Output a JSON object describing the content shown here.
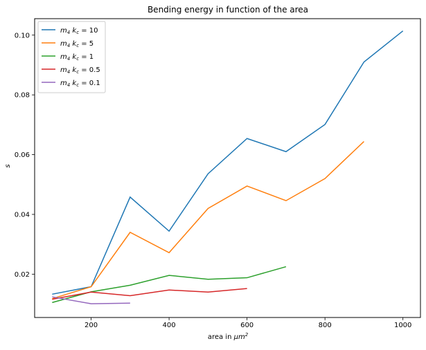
{
  "chart_data": {
    "type": "line",
    "title": "Bending energy in function of the area",
    "xlabel": "area in μm²",
    "ylabel": "s",
    "xlim": [
      55,
      1045
    ],
    "ylim": [
      0.0055,
      0.1055
    ],
    "xticks": [
      200,
      400,
      600,
      800,
      1000
    ],
    "yticks": [
      0.02,
      0.04,
      0.06,
      0.08,
      0.1
    ],
    "ytick_labels": [
      "0.02",
      "0.04",
      "0.06",
      "0.08",
      "0.10"
    ],
    "grid": false,
    "legend_position": "top-left",
    "series": [
      {
        "name": "m₄ k_c = 10",
        "color": "#1f77b4",
        "x": [
          100,
          200,
          300,
          400,
          500,
          600,
          700,
          800,
          900,
          1000
        ],
        "y": [
          0.0133,
          0.0158,
          0.0458,
          0.0344,
          0.0536,
          0.0654,
          0.061,
          0.0701,
          0.091,
          0.1014
        ]
      },
      {
        "name": "m₄ k_c = 5",
        "color": "#ff7f0e",
        "x": [
          100,
          200,
          300,
          400,
          500,
          600,
          700,
          800,
          900
        ],
        "y": [
          0.0118,
          0.0158,
          0.034,
          0.0272,
          0.042,
          0.0495,
          0.0446,
          0.052,
          0.0644
        ]
      },
      {
        "name": "m₄ k_c = 1",
        "color": "#2ca02c",
        "x": [
          100,
          200,
          300,
          400,
          500,
          600,
          700
        ],
        "y": [
          0.0105,
          0.0141,
          0.0163,
          0.0196,
          0.0183,
          0.0188,
          0.0225
        ]
      },
      {
        "name": "m₄  k_c = 0.5",
        "color": "#d62728",
        "x": [
          100,
          200,
          300,
          400,
          500,
          600
        ],
        "y": [
          0.0116,
          0.014,
          0.0128,
          0.0147,
          0.014,
          0.0152
        ]
      },
      {
        "name": "m₄ k_c = 0.1",
        "color": "#9467bd",
        "x": [
          100,
          200,
          300
        ],
        "y": [
          0.0124,
          0.0101,
          0.0103
        ]
      }
    ]
  }
}
